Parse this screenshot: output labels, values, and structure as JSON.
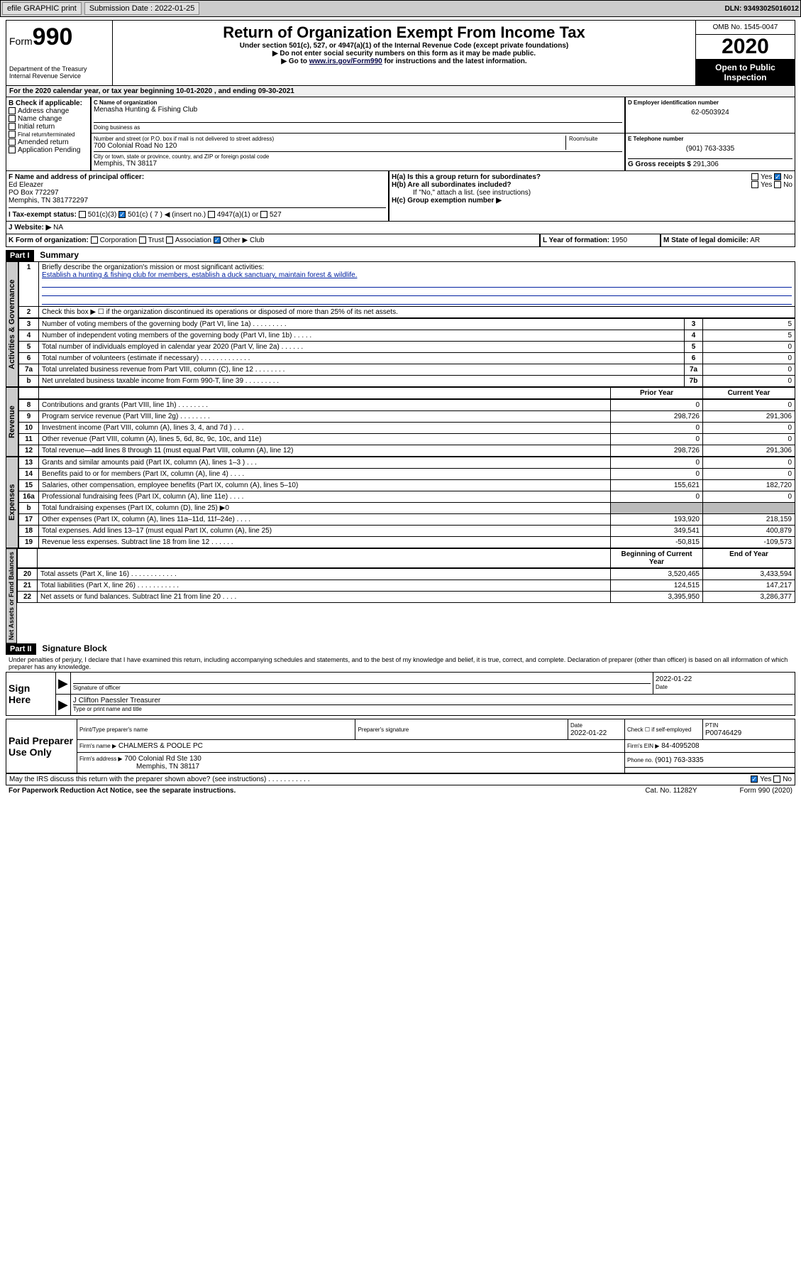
{
  "topbar": {
    "efile": "efile GRAPHIC print",
    "sub_label": "Submission Date : 2022-01-25",
    "dln": "DLN: 93493025016012"
  },
  "header": {
    "form_label": "Form",
    "form_no": "990",
    "dept": "Department of the Treasury\nInternal Revenue Service",
    "title": "Return of Organization Exempt From Income Tax",
    "subtitle": "Under section 501(c), 527, or 4947(a)(1) of the Internal Revenue Code (except private foundations)",
    "note1": "▶ Do not enter social security numbers on this form as it may be made public.",
    "note2": "▶ Go to ",
    "link": "www.irs.gov/Form990",
    "note2b": " for instructions and the latest information.",
    "omb": "OMB No. 1545-0047",
    "year": "2020",
    "inspect": "Open to Public Inspection"
  },
  "a": {
    "text": "For the 2020 calendar year, or tax year beginning 10-01-2020    , and ending 09-30-2021"
  },
  "b": {
    "label": "B Check if applicable:",
    "items": [
      "Address change",
      "Name change",
      "Initial return",
      "Final return/terminated",
      "Amended return",
      "Application Pending"
    ]
  },
  "c": {
    "name_label": "C Name of organization",
    "name": "Menasha Hunting & Fishing Club",
    "dba_label": "Doing business as",
    "street_label": "Number and street (or P.O. box if mail is not delivered to street address)",
    "room_label": "Room/suite",
    "street": "700 Colonial Road No 120",
    "city_label": "City or town, state or province, country, and ZIP or foreign postal code",
    "city": "Memphis, TN  38117"
  },
  "d": {
    "label": "D Employer identification number",
    "val": "62-0503924"
  },
  "e": {
    "label": "E Telephone number",
    "val": "(901) 763-3335"
  },
  "g": {
    "label": "G Gross receipts $",
    "val": "291,306"
  },
  "f": {
    "label": "F  Name and address of principal officer:",
    "name": "Ed Eleazer",
    "addr1": "PO Box 772297",
    "addr2": "Memphis, TN  381772297"
  },
  "h": {
    "a": "H(a)  Is this a group return for subordinates?",
    "b": "H(b)  Are all subordinates included?",
    "b_note": "If \"No,\" attach a list. (see instructions)",
    "c": "H(c)  Group exemption number ▶",
    "yes": "Yes",
    "no": "No"
  },
  "i": {
    "label": "I  Tax-exempt status:",
    "opts": [
      "501(c)(3)",
      "501(c) ( 7 ) ◀ (insert no.)",
      "4947(a)(1) or",
      "527"
    ]
  },
  "j": {
    "label": "J  Website: ▶",
    "val": "NA"
  },
  "k": {
    "label": "K Form of organization:",
    "opts": [
      "Corporation",
      "Trust",
      "Association",
      "Other ▶"
    ],
    "other": "Club"
  },
  "l": {
    "label": "L Year of formation:",
    "val": "1950"
  },
  "m": {
    "label": "M State of legal domicile:",
    "val": "AR"
  },
  "part1": {
    "hdr": "Part I",
    "title": "Summary",
    "q1": "Briefly describe the organization's mission or most significant activities:",
    "mission": "Establish a hunting & fishing club for members, establish a duck sanctuary, maintain forest & wildlife.",
    "q2": "Check this box ▶ ☐  if the organization discontinued its operations or disposed of more than 25% of its net assets.",
    "rows_gov": [
      {
        "n": "3",
        "t": "Number of voting members of the governing body (Part VI, line 1a)   .    .    .    .    .    .    .    .    .",
        "l": "3",
        "v": "5"
      },
      {
        "n": "4",
        "t": "Number of independent voting members of the governing body (Part VI, line 1b)   .    .    .    .    .",
        "l": "4",
        "v": "5"
      },
      {
        "n": "5",
        "t": "Total number of individuals employed in calendar year 2020 (Part V, line 2a)   .    .    .    .    .    .",
        "l": "5",
        "v": "0"
      },
      {
        "n": "6",
        "t": "Total number of volunteers (estimate if necessary)   .    .    .    .    .    .    .    .    .    .    .    .    .",
        "l": "6",
        "v": "0"
      },
      {
        "n": "7a",
        "t": "Total unrelated business revenue from Part VIII, column (C), line 12   .    .    .    .    .    .    .    .",
        "l": "7a",
        "v": "0"
      },
      {
        "n": "b",
        "t": "Net unrelated business taxable income from Form 990-T, line 39   .    .    .    .    .    .    .    .    .",
        "l": "7b",
        "v": "0"
      }
    ],
    "col_prior": "Prior Year",
    "col_current": "Current Year",
    "sections": {
      "gov": "Activities & Governance",
      "rev": "Revenue",
      "exp": "Expenses",
      "net": "Net Assets or Fund Balances"
    },
    "rows_rev": [
      {
        "n": "8",
        "t": "Contributions and grants (Part VIII, line 1h)   .    .    .    .    .    .    .    .",
        "p": "0",
        "c": "0"
      },
      {
        "n": "9",
        "t": "Program service revenue (Part VIII, line 2g)   .    .    .    .    .    .    .    .",
        "p": "298,726",
        "c": "291,306"
      },
      {
        "n": "10",
        "t": "Investment income (Part VIII, column (A), lines 3, 4, and 7d )   .    .    .",
        "p": "0",
        "c": "0"
      },
      {
        "n": "11",
        "t": "Other revenue (Part VIII, column (A), lines 5, 6d, 8c, 9c, 10c, and 11e)",
        "p": "0",
        "c": "0"
      },
      {
        "n": "12",
        "t": "Total revenue—add lines 8 through 11 (must equal Part VIII, column (A), line 12)",
        "p": "298,726",
        "c": "291,306"
      }
    ],
    "rows_exp": [
      {
        "n": "13",
        "t": "Grants and similar amounts paid (Part IX, column (A), lines 1–3 )   .    .    .",
        "p": "0",
        "c": "0"
      },
      {
        "n": "14",
        "t": "Benefits paid to or for members (Part IX, column (A), line 4)   .    .    .    .",
        "p": "0",
        "c": "0"
      },
      {
        "n": "15",
        "t": "Salaries, other compensation, employee benefits (Part IX, column (A), lines 5–10)",
        "p": "155,621",
        "c": "182,720"
      },
      {
        "n": "16a",
        "t": "Professional fundraising fees (Part IX, column (A), line 11e)   .    .    .    .",
        "p": "0",
        "c": "0"
      },
      {
        "n": "b",
        "t": "Total fundraising expenses (Part IX, column (D), line 25) ▶0",
        "p": "",
        "c": "",
        "gray": true
      },
      {
        "n": "17",
        "t": "Other expenses (Part IX, column (A), lines 11a–11d, 11f–24e)   .    .    .    .",
        "p": "193,920",
        "c": "218,159"
      },
      {
        "n": "18",
        "t": "Total expenses. Add lines 13–17 (must equal Part IX, column (A), line 25)",
        "p": "349,541",
        "c": "400,879"
      },
      {
        "n": "19",
        "t": "Revenue less expenses. Subtract line 18 from line 12   .    .    .    .    .    .",
        "p": "-50,815",
        "c": "-109,573"
      }
    ],
    "col_beg": "Beginning of Current Year",
    "col_end": "End of Year",
    "rows_net": [
      {
        "n": "20",
        "t": "Total assets (Part X, line 16)   .    .    .    .    .    .    .    .    .    .    .    .",
        "p": "3,520,465",
        "c": "3,433,594"
      },
      {
        "n": "21",
        "t": "Total liabilities (Part X, line 26)   .    .    .    .    .    .    .    .    .    .    .",
        "p": "124,515",
        "c": "147,217"
      },
      {
        "n": "22",
        "t": "Net assets or fund balances. Subtract line 21 from line 20   .    .    .    .",
        "p": "3,395,950",
        "c": "3,286,377"
      }
    ]
  },
  "part2": {
    "hdr": "Part II",
    "title": "Signature Block",
    "perjury": "Under penalties of perjury, I declare that I have examined this return, including accompanying schedules and statements, and to the best of my knowledge and belief, it is true, correct, and complete. Declaration of preparer (other than officer) is based on all information of which preparer has any knowledge.",
    "sign_here": "Sign Here",
    "sig_officer": "Signature of officer",
    "sig_date": "2022-01-22",
    "date_label": "Date",
    "officer_name": "J Clifton Paessler  Treasurer",
    "type_label": "Type or print name and title",
    "paid": "Paid Preparer Use Only",
    "prep_name_label": "Print/Type preparer's name",
    "prep_sig_label": "Preparer's signature",
    "prep_date": "2022-01-22",
    "self_emp": "Check ☐ if self-employed",
    "ptin_label": "PTIN",
    "ptin": "P00746429",
    "firm_name_label": "Firm's name      ▶",
    "firm_name": "CHALMERS & POOLE PC",
    "firm_ein_label": "Firm's EIN ▶",
    "firm_ein": "84-4095208",
    "firm_addr_label": "Firm's address ▶",
    "firm_addr": "700 Colonial Rd Ste 130",
    "firm_city": "Memphis, TN  38117",
    "firm_phone_label": "Phone no.",
    "firm_phone": "(901) 763-3335",
    "discuss": "May the IRS discuss this return with the preparer shown above? (see instructions)   .    .    .    .    .    .    .    .    .    .    .",
    "yes": "Yes",
    "no": "No"
  },
  "footer": {
    "pra": "For Paperwork Reduction Act Notice, see the separate instructions.",
    "cat": "Cat. No. 11282Y",
    "form": "Form 990 (2020)"
  }
}
